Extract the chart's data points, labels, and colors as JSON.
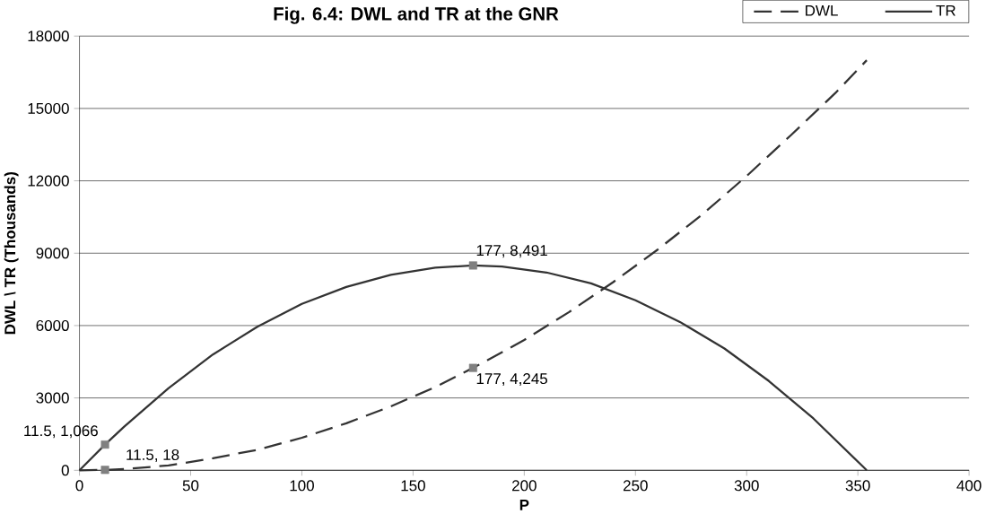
{
  "chart_data": {
    "type": "line",
    "title": "Fig. 6.4: DWL and TR at the GNR",
    "xlabel": "P",
    "ylabel": "DWL \\ TR (Thousands)",
    "xlim": [
      0,
      400
    ],
    "xticks": [
      0,
      50,
      100,
      150,
      200,
      250,
      300,
      350,
      400
    ],
    "ylim": [
      0,
      18000
    ],
    "yticks": [
      0,
      3000,
      6000,
      9000,
      12000,
      15000,
      18000
    ],
    "grid": "y",
    "legend": "top right",
    "marker": "none",
    "series": [
      {
        "name": "DWL",
        "color": "#333333",
        "line_style": "dashed",
        "x": [
          0,
          11.5,
          20,
          40,
          60,
          80,
          100,
          120,
          140,
          160,
          177,
          200,
          220,
          240,
          260,
          280,
          300,
          320,
          340,
          354
        ],
        "values": [
          0,
          18,
          50,
          200,
          500,
          850,
          1350,
          1950,
          2650,
          3450,
          4245,
          5400,
          6550,
          7800,
          9150,
          10600,
          12200,
          13900,
          15650,
          17000
        ]
      },
      {
        "name": "TR",
        "color": "#333333",
        "line_style": "solid",
        "x": [
          0,
          11.5,
          20,
          40,
          60,
          80,
          100,
          120,
          140,
          160,
          177,
          190,
          210,
          230,
          250,
          270,
          290,
          310,
          330,
          354
        ],
        "values": [
          0,
          1066,
          1800,
          3400,
          4800,
          5950,
          6900,
          7600,
          8100,
          8400,
          8491,
          8450,
          8200,
          7750,
          7050,
          6150,
          5050,
          3700,
          2150,
          0
        ]
      },
      {
        "type": "scatter",
        "color": "#808080",
        "marker": "square",
        "x": [
          11.5,
          11.5,
          177,
          177
        ],
        "values": [
          1066,
          18,
          8491,
          4245
        ],
        "value_labels": [
          "11.5,  1,066",
          "11.5,  18",
          "177,  8,491",
          "177,  4,245"
        ]
      }
    ]
  }
}
